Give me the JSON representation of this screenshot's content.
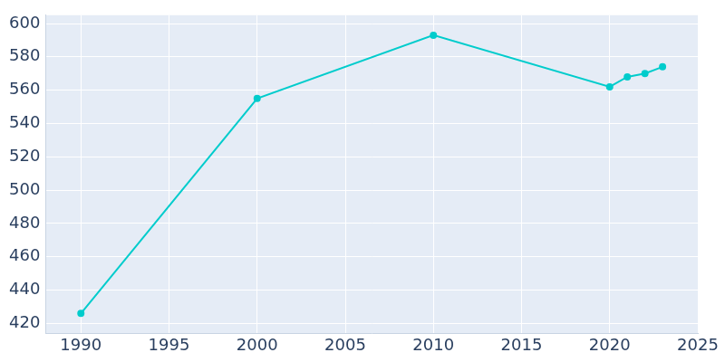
{
  "chart_data": {
    "type": "line",
    "x": [
      1990,
      2000,
      2010,
      2020,
      2021,
      2022,
      2023
    ],
    "values": [
      426,
      555,
      593,
      562,
      568,
      570,
      574
    ],
    "color": "#00cccc",
    "marker": "circle",
    "xlim": [
      1988,
      2025
    ],
    "xticks": [
      1990,
      1995,
      2000,
      2005,
      2010,
      2015,
      2020,
      2025
    ],
    "ylim": [
      414,
      605
    ],
    "yticks": [
      420,
      440,
      460,
      480,
      500,
      520,
      540,
      560,
      580,
      600
    ],
    "grid": true
  }
}
